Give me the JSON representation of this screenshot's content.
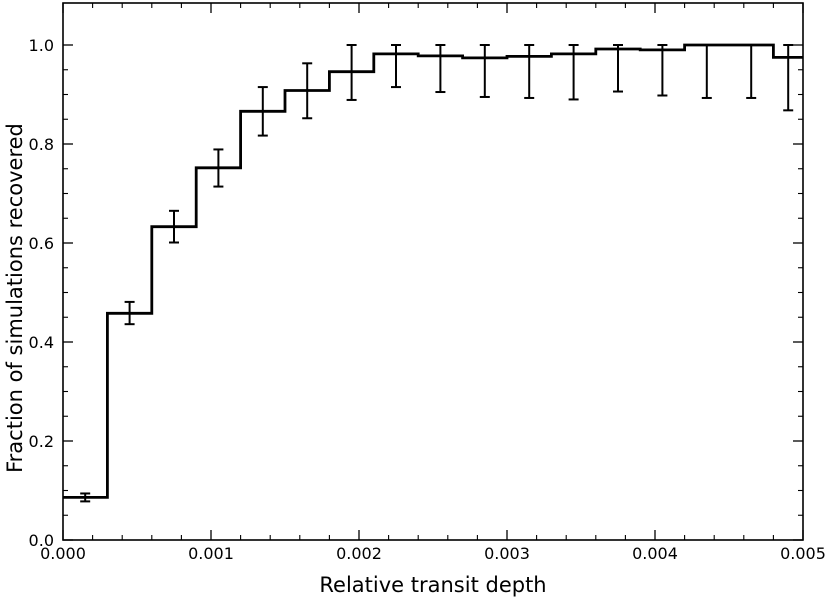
{
  "chart_data": {
    "type": "line",
    "style": "step-histogram",
    "title": "",
    "xlabel": "Relative transit depth",
    "ylabel": "Fraction of  simulations recovered",
    "xlim": [
      0.0,
      0.005
    ],
    "ylim": [
      0.0,
      1.05
    ],
    "grid": false,
    "x_ticks": [
      0.0,
      0.001,
      0.002,
      0.003,
      0.004,
      0.005
    ],
    "x_tick_labels": [
      "0.000",
      "0.001",
      "0.002",
      "0.003",
      "0.004",
      "0.005"
    ],
    "y_ticks": [
      0.0,
      0.2,
      0.4,
      0.6,
      0.8,
      1.0
    ],
    "y_tick_labels": [
      "0.0",
      "0.2",
      "0.4",
      "0.6",
      "0.8",
      "1.0"
    ],
    "bin_edges": [
      0.0,
      0.0003,
      0.0006,
      0.0009,
      0.0012,
      0.0015,
      0.0018,
      0.0021,
      0.0024,
      0.0027,
      0.003,
      0.0033,
      0.0036,
      0.0039,
      0.0042,
      0.0045,
      0.0048,
      0.005
    ],
    "series": [
      {
        "bin_centers": [
          0.00015,
          0.00045,
          0.00075,
          0.00105,
          0.00135,
          0.00165,
          0.00195,
          0.00225,
          0.00255,
          0.00285,
          0.00315,
          0.00345,
          0.00375,
          0.00405,
          0.00435,
          0.00465,
          0.0049
        ],
        "values": [
          0.086,
          0.458,
          0.633,
          0.752,
          0.866,
          0.908,
          0.946,
          0.982,
          0.978,
          0.974,
          0.977,
          0.982,
          0.992,
          0.99,
          1.0,
          1.0,
          0.975
        ],
        "error_low": [
          0.078,
          0.436,
          0.601,
          0.714,
          0.817,
          0.852,
          0.889,
          0.915,
          0.905,
          0.895,
          0.893,
          0.89,
          0.906,
          0.898,
          0.893,
          0.893,
          0.868
        ],
        "error_high": [
          0.094,
          0.481,
          0.665,
          0.789,
          0.915,
          0.963,
          1.0,
          1.0,
          1.0,
          1.0,
          1.0,
          1.0,
          1.0,
          1.0,
          1.0,
          1.0,
          1.0
        ],
        "color": "#000000"
      }
    ]
  }
}
